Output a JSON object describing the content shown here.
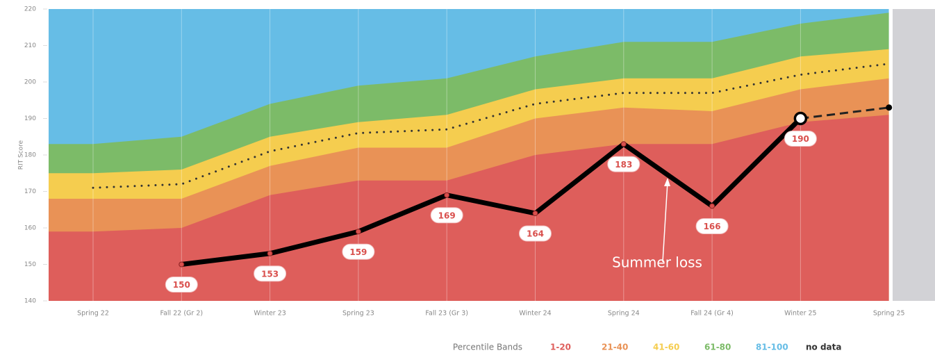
{
  "chart_data": {
    "type": "area_line",
    "y_label": "RIT Score",
    "categories": [
      "Spring 22",
      "Fall 22 (Gr 2)",
      "Winter 23",
      "Spring 23",
      "Fall 23 (Gr 3)",
      "Winter 24",
      "Spring 24",
      "Fall 24 (Gr 4)",
      "Winter 25",
      "Spring 25"
    ],
    "ylim": [
      140,
      220
    ],
    "yticks": [
      140,
      150,
      160,
      170,
      180,
      190,
      200,
      210,
      220
    ],
    "legend_title": "Percentile Bands",
    "bands": [
      {
        "name": "1-20",
        "color": "#de5e5b",
        "values": [
          159,
          160,
          169,
          173,
          173,
          180,
          183,
          183,
          189,
          191
        ]
      },
      {
        "name": "21-40",
        "color": "#e99256",
        "values": [
          168,
          168,
          177,
          182,
          182,
          190,
          193,
          192,
          198,
          201
        ]
      },
      {
        "name": "41-60",
        "color": "#f5cd4f",
        "values": [
          175,
          176,
          185,
          189,
          191,
          198,
          201,
          201,
          207,
          209
        ]
      },
      {
        "name": "61-80",
        "color": "#7cbb68",
        "values": [
          183,
          185,
          194,
          199,
          201,
          207,
          211,
          211,
          216,
          219
        ]
      },
      {
        "name": "81-100",
        "color": "#66bde6",
        "values": [
          220,
          220,
          220,
          220,
          220,
          220,
          220,
          220,
          220,
          220
        ]
      }
    ],
    "no_data_label": "no data",
    "median": [
      171,
      172,
      181,
      186,
      187,
      194,
      197,
      197,
      202,
      205
    ],
    "student": [
      null,
      150,
      153,
      159,
      169,
      164,
      183,
      166,
      190,
      null
    ],
    "projection": [
      null,
      null,
      null,
      null,
      null,
      null,
      null,
      null,
      190,
      193
    ],
    "annotation": "Summer loss"
  }
}
